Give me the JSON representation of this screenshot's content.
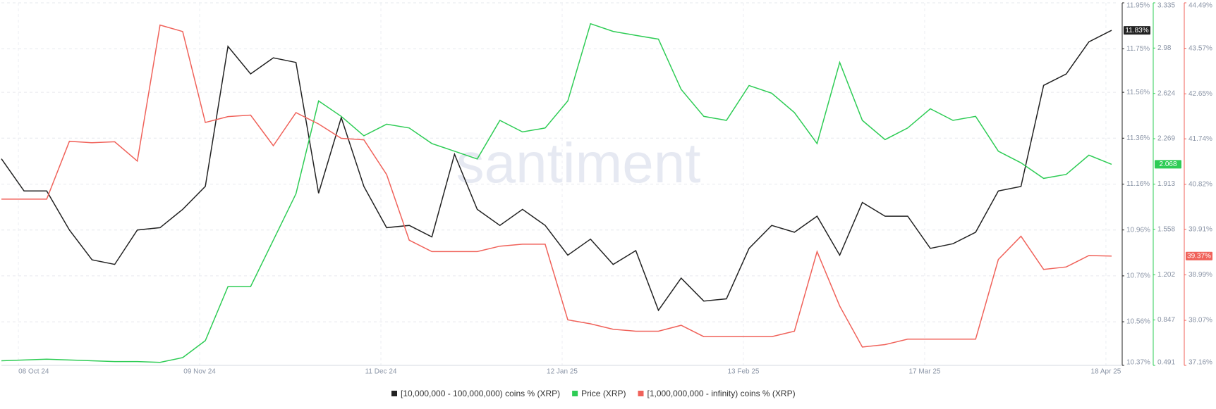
{
  "chart_data": {
    "type": "line",
    "watermark": "santiment",
    "x": [
      "2024-10-05",
      "2024-10-09",
      "2024-10-13",
      "2024-10-17",
      "2024-10-21",
      "2024-10-25",
      "2024-10-29",
      "2024-11-02",
      "2024-11-06",
      "2024-11-10",
      "2024-11-14",
      "2024-11-18",
      "2024-11-22",
      "2024-11-26",
      "2024-11-30",
      "2024-12-04",
      "2024-12-08",
      "2024-12-12",
      "2024-12-16",
      "2024-12-20",
      "2024-12-24",
      "2024-12-28",
      "2025-01-01",
      "2025-01-05",
      "2025-01-09",
      "2025-01-13",
      "2025-01-17",
      "2025-01-21",
      "2025-01-25",
      "2025-01-29",
      "2025-02-02",
      "2025-02-06",
      "2025-02-10",
      "2025-02-14",
      "2025-02-18",
      "2025-02-22",
      "2025-02-26",
      "2025-03-02",
      "2025-03-06",
      "2025-03-10",
      "2025-03-14",
      "2025-03-18",
      "2025-03-22",
      "2025-03-26",
      "2025-03-30",
      "2025-04-03",
      "2025-04-07",
      "2025-04-11",
      "2025-04-15",
      "2025-04-19"
    ],
    "xlim": [
      "2024-10-05",
      "2025-04-20"
    ],
    "xticks": [
      {
        "value": "2024-10-08",
        "label": "08 Oct 24"
      },
      {
        "value": "2024-11-09",
        "label": "09 Nov 24"
      },
      {
        "value": "2024-12-11",
        "label": "11 Dec 24"
      },
      {
        "value": "2025-01-12",
        "label": "12 Jan 25"
      },
      {
        "value": "2025-02-13",
        "label": "13 Feb 25"
      },
      {
        "value": "2025-03-17",
        "label": "17 Mar 25"
      },
      {
        "value": "2025-04-18",
        "label": "18 Apr 25"
      }
    ],
    "ylim": [
      10.37,
      11.95
    ],
    "yticks": [
      {
        "value": 10.37,
        "label": "10.37%"
      },
      {
        "value": 10.56,
        "label": "10.56%"
      },
      {
        "value": 10.76,
        "label": "10.76%"
      },
      {
        "value": 10.96,
        "label": "10.96%"
      },
      {
        "value": 11.16,
        "label": "11.16%"
      },
      {
        "value": 11.36,
        "label": "11.36%"
      },
      {
        "value": 11.56,
        "label": "11.56%"
      },
      {
        "value": 11.75,
        "label": "11.75%"
      },
      {
        "value": 11.95,
        "label": "11.95%"
      }
    ],
    "y2lim": [
      0.491,
      3.335
    ],
    "y2ticks": [
      0.491,
      0.847,
      1.202,
      1.558,
      1.913,
      2.269,
      2.624,
      2.98,
      3.335
    ],
    "y3lim": [
      37.16,
      44.49
    ],
    "y3ticks": [
      {
        "value": 37.16,
        "label": "37.16%"
      },
      {
        "value": 38.07,
        "label": "38.07%"
      },
      {
        "value": 38.99,
        "label": "38.99%"
      },
      {
        "value": 39.91,
        "label": "39.91%"
      },
      {
        "value": 40.82,
        "label": "40.82%"
      },
      {
        "value": 41.74,
        "label": "41.74%"
      },
      {
        "value": 42.65,
        "label": "42.65%"
      },
      {
        "value": 43.57,
        "label": "43.57%"
      },
      {
        "value": 44.49,
        "label": "44.49%"
      }
    ],
    "grid": true,
    "series": [
      {
        "name": "[10,000,000 - 100,000,000) coins % (XRP)",
        "color": "#222222",
        "axis": "y",
        "values": [
          11.27,
          11.13,
          11.13,
          10.96,
          10.83,
          10.81,
          10.96,
          10.97,
          11.05,
          11.15,
          11.76,
          11.64,
          11.71,
          11.69,
          11.12,
          11.45,
          11.15,
          10.97,
          10.98,
          10.93,
          11.29,
          11.05,
          10.98,
          11.05,
          10.98,
          10.85,
          10.92,
          10.81,
          10.87,
          10.61,
          10.75,
          10.65,
          10.66,
          10.88,
          10.98,
          10.95,
          11.02,
          10.85,
          11.08,
          11.02,
          11.02,
          10.88,
          10.9,
          10.95,
          11.13,
          11.15,
          11.59,
          11.64,
          11.78,
          11.83
        ],
        "value_labels": [
          null,
          null,
          null,
          null,
          null,
          null,
          null,
          null,
          null,
          null,
          null,
          null,
          null,
          null,
          null,
          null,
          null,
          null,
          null,
          null,
          null,
          null,
          null,
          null,
          null,
          null,
          null,
          null,
          null,
          null,
          null,
          null,
          null,
          null,
          null,
          null,
          null,
          null,
          null,
          null,
          null,
          null,
          null,
          null,
          null,
          null,
          null,
          null,
          null,
          "11.83%"
        ]
      },
      {
        "name": "Price (XRP)",
        "color": "#2ecc55",
        "axis": "y2",
        "values": [
          0.527,
          0.533,
          0.539,
          0.533,
          0.527,
          0.521,
          0.521,
          0.515,
          0.552,
          0.685,
          1.109,
          1.109,
          1.473,
          1.837,
          2.565,
          2.444,
          2.292,
          2.383,
          2.353,
          2.231,
          2.171,
          2.11,
          2.413,
          2.322,
          2.353,
          2.565,
          3.171,
          3.111,
          3.08,
          3.05,
          2.656,
          2.444,
          2.413,
          2.686,
          2.626,
          2.474,
          2.231,
          2.868,
          2.413,
          2.262,
          2.353,
          2.504,
          2.413,
          2.444,
          2.171,
          2.08,
          1.958,
          1.989,
          2.14,
          2.068
        ]
      },
      {
        "name": "[1,000,000,000 - infinity) coins % (XRP)",
        "color": "#f0625a",
        "axis": "y3",
        "values": [
          40.52,
          40.52,
          40.52,
          41.69,
          41.66,
          41.68,
          41.29,
          44.04,
          43.91,
          42.07,
          42.19,
          42.22,
          41.6,
          42.27,
          42.04,
          41.75,
          41.72,
          41.02,
          39.69,
          39.46,
          39.46,
          39.46,
          39.57,
          39.61,
          39.61,
          38.08,
          38.0,
          37.89,
          37.85,
          37.85,
          37.97,
          37.74,
          37.74,
          37.74,
          37.74,
          37.85,
          39.46,
          38.36,
          37.53,
          37.58,
          37.69,
          37.69,
          37.69,
          37.69,
          39.3,
          39.77,
          39.1,
          39.15,
          39.38,
          39.37
        ],
        "value_labels": [
          null,
          null,
          null,
          null,
          null,
          null,
          null,
          null,
          null,
          null,
          null,
          null,
          null,
          null,
          null,
          null,
          null,
          null,
          null,
          null,
          null,
          null,
          null,
          null,
          null,
          null,
          null,
          null,
          null,
          null,
          null,
          null,
          null,
          null,
          null,
          null,
          null,
          null,
          null,
          null,
          null,
          null,
          null,
          null,
          null,
          null,
          null,
          null,
          null,
          "39.37%"
        ]
      }
    ]
  }
}
